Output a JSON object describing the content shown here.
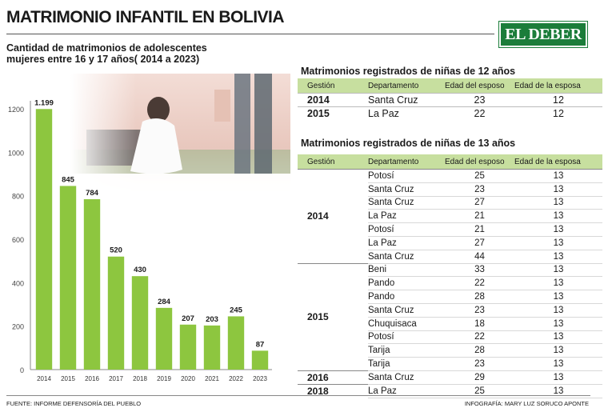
{
  "header": {
    "title": "MATRIMONIO INFANTIL EN BOLIVIA",
    "logo_text": "EL DEBER",
    "brand_color": "#1b7d3a"
  },
  "chart_data": {
    "type": "bar",
    "title": "Cantidad de matrimonios de adolescentes mujeres entre 16 y 17 años( 2014 a 2023)",
    "categories": [
      "2014",
      "2015",
      "2016",
      "2017",
      "2018",
      "2019",
      "2020",
      "2021",
      "2022",
      "2023"
    ],
    "values": [
      1199,
      845,
      784,
      520,
      430,
      284,
      207,
      203,
      245,
      87
    ],
    "value_labels": [
      "1.199",
      "845",
      "784",
      "520",
      "430",
      "284",
      "207",
      "203",
      "245",
      "87"
    ],
    "yticks": [
      0,
      200,
      400,
      600,
      800,
      1000,
      1200
    ],
    "ylim": [
      0,
      1200
    ],
    "bar_color": "#8dc63f",
    "grid": false
  },
  "table12": {
    "title": "Matrimonios registrados de niñas de 12 años",
    "headers": [
      "Gestión",
      "Departamento",
      "Edad del esposo",
      "Edad de la esposa"
    ],
    "rows": [
      [
        "2014",
        "Santa Cruz",
        "23",
        "12"
      ],
      [
        "2015",
        "La Paz",
        "22",
        "12"
      ]
    ]
  },
  "table13": {
    "title": "Matrimonios registrados de niñas de 13 años",
    "headers": [
      "Gestión",
      "Departamento",
      "Edad del esposo",
      "Edad de la esposa"
    ],
    "groups": [
      {
        "year": "2014",
        "rows": [
          [
            "Potosí",
            "25",
            "13"
          ],
          [
            "Santa Cruz",
            "23",
            "13"
          ],
          [
            "Santa Cruz",
            "27",
            "13"
          ],
          [
            "La Paz",
            "21",
            "13"
          ],
          [
            "Potosí",
            "21",
            "13"
          ],
          [
            "La Paz",
            "27",
            "13"
          ],
          [
            "Santa Cruz",
            "44",
            "13"
          ]
        ]
      },
      {
        "year": "2015",
        "rows": [
          [
            "Beni",
            "33",
            "13"
          ],
          [
            "Pando",
            "22",
            "13"
          ],
          [
            "Pando",
            "28",
            "13"
          ],
          [
            "Santa Cruz",
            "23",
            "13"
          ],
          [
            "Chuquisaca",
            "18",
            "13"
          ],
          [
            "Potosí",
            "22",
            "13"
          ],
          [
            "Tarija",
            "28",
            "13"
          ],
          [
            "Tarija",
            "23",
            "13"
          ]
        ]
      },
      {
        "year": "2016",
        "rows": [
          [
            "Santa Cruz",
            "29",
            "13"
          ]
        ]
      },
      {
        "year": "2018",
        "rows": [
          [
            "La Paz",
            "25",
            "13"
          ]
        ]
      }
    ]
  },
  "footer": {
    "source": "FUENTE: INFORME DEFENSORÍA DEL PUEBLO",
    "credit": "INFOGRAFÍA: MARY LUZ SORUCO APONTE"
  }
}
